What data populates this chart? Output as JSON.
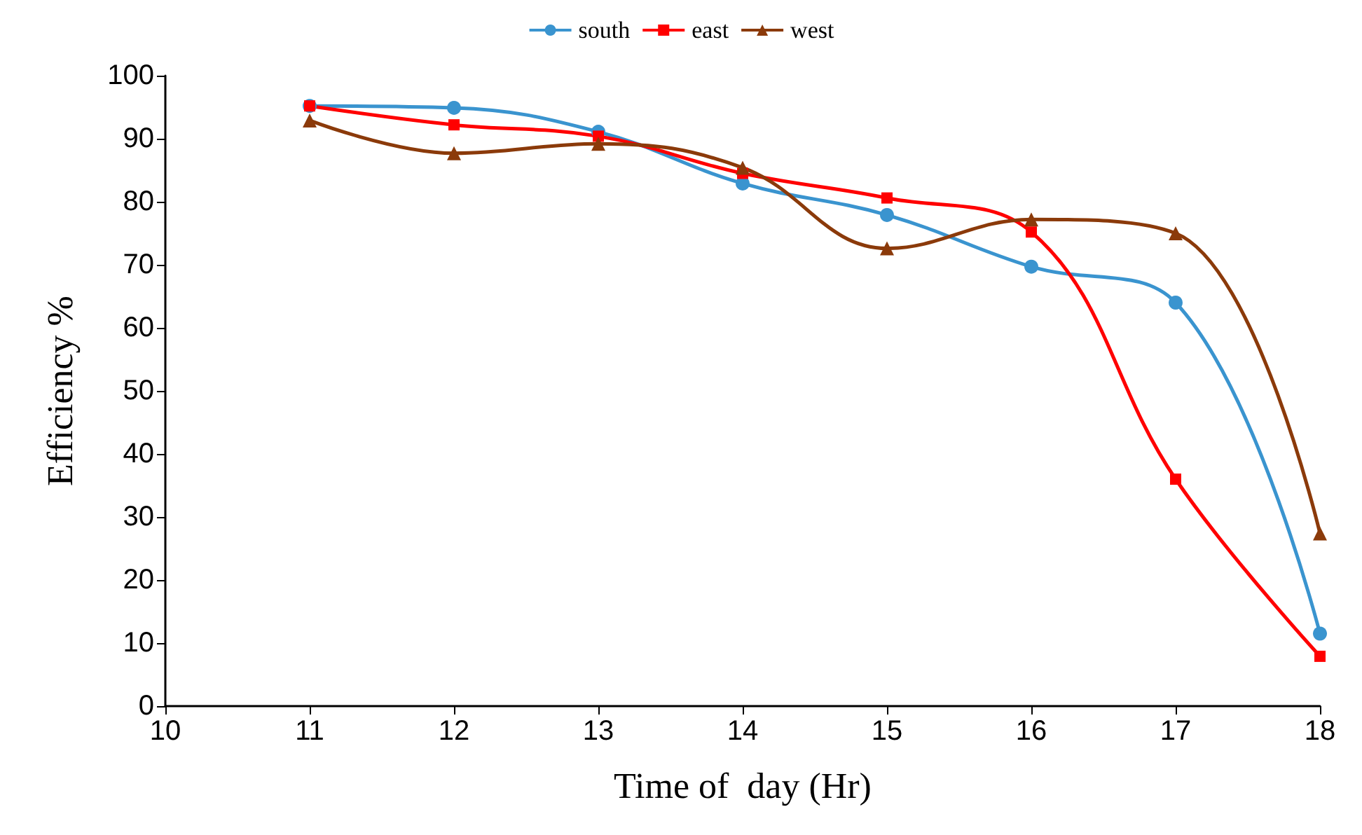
{
  "chart_data": {
    "type": "line",
    "xlabel": "Time of  day (Hr)",
    "ylabel": "Efficiency %",
    "x": [
      11,
      12,
      13,
      14,
      15,
      16,
      17,
      18
    ],
    "series": [
      {
        "name": "south",
        "color": "#3a94cf",
        "marker": "circle",
        "values": [
          95.2,
          94.9,
          91.1,
          82.9,
          77.9,
          69.7,
          64,
          11.5
        ]
      },
      {
        "name": "east",
        "color": "#ff0000",
        "marker": "square",
        "values": [
          95.2,
          92.2,
          90.4,
          84.5,
          80.6,
          75.2,
          36,
          7.9
        ]
      },
      {
        "name": "west",
        "color": "#8b3a0a",
        "marker": "triangle",
        "values": [
          92.9,
          87.7,
          89.2,
          85.4,
          72.6,
          77.2,
          75,
          27.4
        ]
      }
    ],
    "xlim": [
      10,
      18
    ],
    "xticks": [
      10,
      11,
      12,
      13,
      14,
      15,
      16,
      17,
      18
    ],
    "ylim": [
      0,
      100
    ],
    "yticks": [
      0,
      10,
      20,
      30,
      40,
      50,
      60,
      70,
      80,
      90,
      100
    ],
    "grid": false,
    "legend": "top",
    "line_style": "solid"
  }
}
